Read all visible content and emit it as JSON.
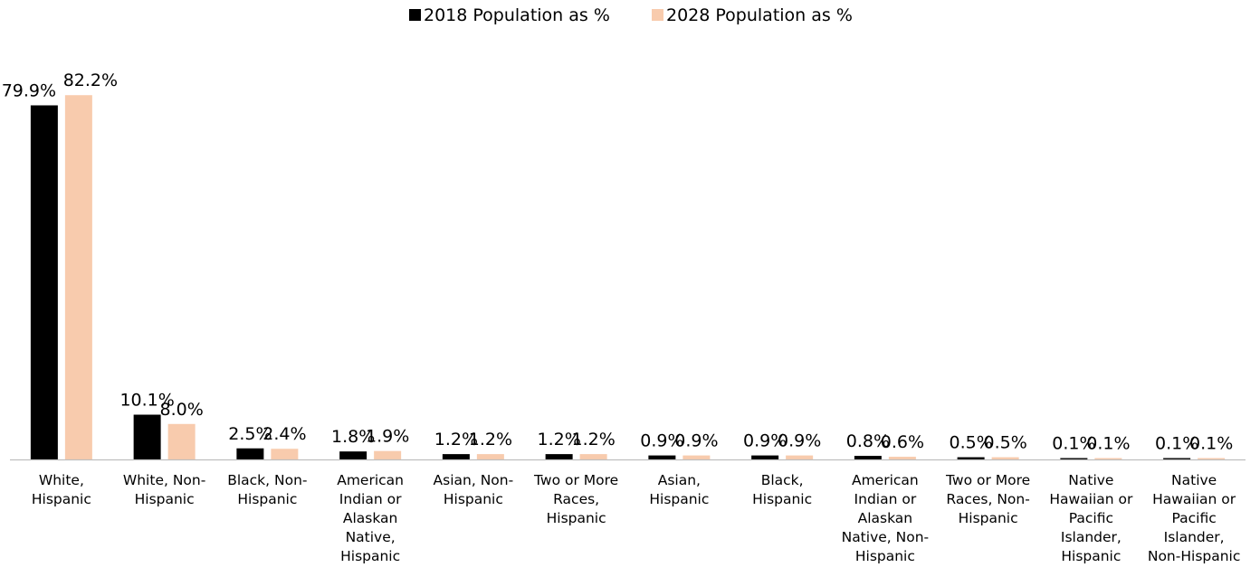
{
  "chart_data": {
    "type": "bar",
    "title": "",
    "xlabel": "",
    "ylabel": "",
    "ylim": [
      0,
      85
    ],
    "grid": false,
    "legend_position": "top-center",
    "categories": [
      "White, Hispanic",
      "White, Non-Hispanic",
      "Black, Non-Hispanic",
      "American Indian or Alaskan Native, Hispanic",
      "Asian, Non-Hispanic",
      "Two or More Races, Hispanic",
      "Asian, Hispanic",
      "Black, Hispanic",
      "American Indian or Alaskan Native, Non-Hispanic",
      "Two or More Races, Non-Hispanic",
      "Native Hawaiian or Pacific Islander, Hispanic",
      "Native Hawaiian or Pacific Islander, Non-Hispanic"
    ],
    "category_lines": [
      [
        "White,",
        "Hispanic"
      ],
      [
        "White, Non-",
        "Hispanic"
      ],
      [
        "Black, Non-",
        "Hispanic"
      ],
      [
        "American",
        "Indian or",
        "Alaskan",
        "Native,",
        "Hispanic"
      ],
      [
        "Asian, Non-",
        "Hispanic"
      ],
      [
        "Two or More",
        "Races,",
        "Hispanic"
      ],
      [
        "Asian,",
        "Hispanic"
      ],
      [
        "Black,",
        "Hispanic"
      ],
      [
        "American",
        "Indian or",
        "Alaskan",
        "Native, Non-",
        "Hispanic"
      ],
      [
        "Two or More",
        "Races, Non-",
        "Hispanic"
      ],
      [
        "Native",
        "Hawaiian or",
        "Pacific",
        "Islander,",
        "Hispanic"
      ],
      [
        "Native",
        "Hawaiian or",
        "Pacific",
        "Islander,",
        "Non-Hispanic"
      ]
    ],
    "series": [
      {
        "name": "2018 Population as %",
        "color": "#000000",
        "values": [
          79.9,
          10.1,
          2.5,
          1.8,
          1.2,
          1.2,
          0.9,
          0.9,
          0.8,
          0.5,
          0.1,
          0.1
        ],
        "labels": [
          "79.9%",
          "10.1%",
          "2.5%",
          "1.8%",
          "1.2%",
          "1.2%",
          "0.9%",
          "0.9%",
          "0.8%",
          "0.5%",
          "0.1%",
          "0.1%"
        ]
      },
      {
        "name": "2028 Population as %",
        "color": "#F8CBAD",
        "values": [
          82.2,
          8.0,
          2.4,
          1.9,
          1.2,
          1.2,
          0.9,
          0.9,
          0.6,
          0.5,
          0.1,
          0.1
        ],
        "labels": [
          "82.2%",
          "8.0%",
          "2.4%",
          "1.9%",
          "1.2%",
          "1.2%",
          "0.9%",
          "0.9%",
          "0.6%",
          "0.5%",
          "0.1%",
          "0.1%"
        ]
      }
    ]
  }
}
